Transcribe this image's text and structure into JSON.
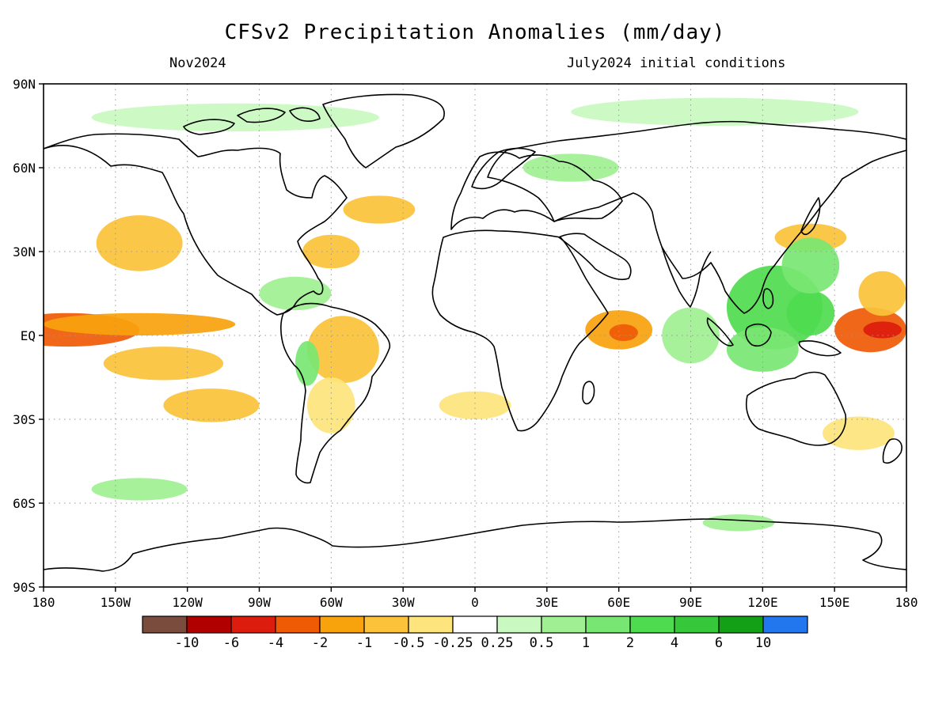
{
  "title": "CFSv2 Precipitation Anomalies (mm/day)",
  "subtitle_left": "Nov2024",
  "subtitle_right": "July2024 initial conditions",
  "lat_ticks": [
    "90N",
    "60N",
    "30N",
    "EQ",
    "30S",
    "60S",
    "90S"
  ],
  "lon_ticks": [
    "180",
    "150W",
    "120W",
    "90W",
    "60W",
    "30W",
    "0",
    "30E",
    "60E",
    "90E",
    "120E",
    "150E",
    "180"
  ],
  "colorbar": {
    "colors": [
      "#7a4c3e",
      "#b00000",
      "#dc1c0c",
      "#ef5a05",
      "#f8a20c",
      "#fbc23a",
      "#fde47c",
      "#ffffff",
      "#c9f8c0",
      "#a0f093",
      "#78e672",
      "#4fdb4f",
      "#36c83a",
      "#13a017",
      "#2277ee"
    ],
    "labels": [
      "-10",
      "-6",
      "-4",
      "-2",
      "-1",
      "-0.5",
      "-0.25",
      "0.25",
      "0.5",
      "1",
      "2",
      "4",
      "6",
      "10"
    ]
  },
  "chart_data": {
    "type": "heatmap",
    "title": "CFSv2 Precipitation Anomalies (mm/day)",
    "variable": "precipitation anomaly",
    "units": "mm/day",
    "xrange": [
      -180,
      180
    ],
    "yrange": [
      -90,
      90
    ],
    "grid": true,
    "anomaly_regions": [
      {
        "lon": -170,
        "lat": 2,
        "rlon": 30,
        "rlat": 6,
        "value": -3
      },
      {
        "lon": -140,
        "lat": 4,
        "rlon": 40,
        "rlat": 4,
        "value": -1.5
      },
      {
        "lon": -130,
        "lat": -10,
        "rlon": 25,
        "rlat": 6,
        "value": -0.6
      },
      {
        "lon": -110,
        "lat": -25,
        "rlon": 20,
        "rlat": 6,
        "value": -0.6
      },
      {
        "lon": -140,
        "lat": 33,
        "rlon": 18,
        "rlat": 10,
        "value": -0.6
      },
      {
        "lon": -55,
        "lat": -5,
        "rlon": 15,
        "rlat": 12,
        "value": -1
      },
      {
        "lon": -60,
        "lat": -25,
        "rlon": 10,
        "rlat": 10,
        "value": -0.5
      },
      {
        "lon": -60,
        "lat": 30,
        "rlon": 12,
        "rlat": 6,
        "value": -0.6
      },
      {
        "lon": -40,
        "lat": 45,
        "rlon": 15,
        "rlat": 5,
        "value": -0.6
      },
      {
        "lon": 60,
        "lat": 2,
        "rlon": 14,
        "rlat": 7,
        "value": -1.5
      },
      {
        "lon": 62,
        "lat": 1,
        "rlon": 6,
        "rlat": 3,
        "value": -2.5
      },
      {
        "lon": 0,
        "lat": -25,
        "rlon": 15,
        "rlat": 5,
        "value": -0.4
      },
      {
        "lon": 165,
        "lat": 2,
        "rlon": 15,
        "rlat": 8,
        "value": -3
      },
      {
        "lon": 170,
        "lat": 2,
        "rlon": 8,
        "rlat": 3,
        "value": -6
      },
      {
        "lon": 170,
        "lat": 15,
        "rlon": 10,
        "rlat": 8,
        "value": -0.6
      },
      {
        "lon": 140,
        "lat": 35,
        "rlon": 15,
        "rlat": 5,
        "value": -0.6
      },
      {
        "lon": 160,
        "lat": -35,
        "rlon": 15,
        "rlat": 6,
        "value": -0.5
      },
      {
        "lon": 125,
        "lat": 10,
        "rlon": 20,
        "rlat": 15,
        "value": 2
      },
      {
        "lon": 140,
        "lat": 8,
        "rlon": 10,
        "rlat": 8,
        "value": 3
      },
      {
        "lon": 120,
        "lat": -5,
        "rlon": 15,
        "rlat": 8,
        "value": 1.5
      },
      {
        "lon": 140,
        "lat": 25,
        "rlon": 12,
        "rlat": 10,
        "value": 1
      },
      {
        "lon": 90,
        "lat": 0,
        "rlon": 12,
        "rlat": 10,
        "value": 0.8
      },
      {
        "lon": -75,
        "lat": 15,
        "rlon": 15,
        "rlat": 6,
        "value": 0.8
      },
      {
        "lon": -70,
        "lat": -10,
        "rlon": 5,
        "rlat": 8,
        "value": 1
      },
      {
        "lon": -140,
        "lat": -55,
        "rlon": 20,
        "rlat": 4,
        "value": 0.5
      },
      {
        "lon": 40,
        "lat": 60,
        "rlon": 20,
        "rlat": 5,
        "value": 0.5
      },
      {
        "lon": -100,
        "lat": 78,
        "rlon": 60,
        "rlat": 5,
        "value": 0.4
      },
      {
        "lon": 100,
        "lat": 80,
        "rlon": 60,
        "rlat": 5,
        "value": 0.4
      },
      {
        "lon": 110,
        "lat": -67,
        "rlon": 15,
        "rlat": 3,
        "value": 0.5
      }
    ]
  }
}
